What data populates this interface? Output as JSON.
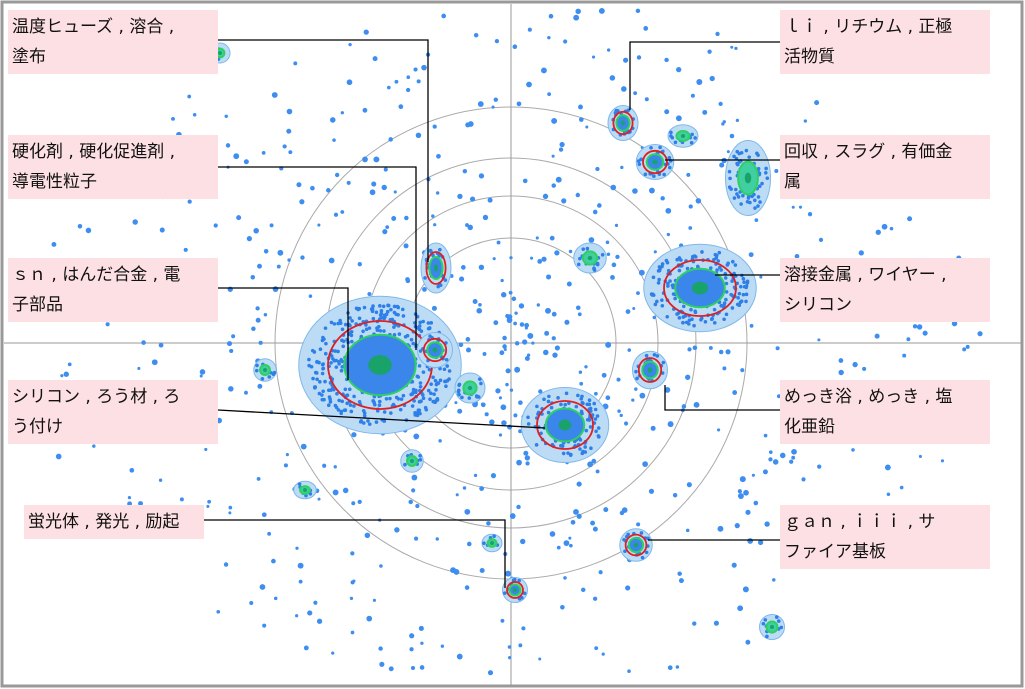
{
  "labels": [
    {
      "lines": [
        "温度ヒューズ , 溶合 ,",
        "塗布"
      ]
    },
    {
      "lines": [
        "硬化剤 , 硬化促進剤 ,",
        "導電性粒子"
      ]
    },
    {
      "lines": [
        "ｓｎ , はんだ合金 , 電",
        "子部品"
      ]
    },
    {
      "lines": [
        "シリコン , ろう材 , ろ",
        "う付け"
      ]
    },
    {
      "lines": [
        "蛍光体 , 発光 , 励起"
      ]
    },
    {
      "lines": [
        "ｌｉ , リチウム , 正極",
        "活物質"
      ]
    },
    {
      "lines": [
        "回収 , スラグ , 有価金",
        "属"
      ]
    },
    {
      "lines": [
        "溶接金属 , ワイヤー ,",
        "シリコン"
      ]
    },
    {
      "lines": [
        "めっき浴 , めっき , 塩",
        "化亜鉛"
      ]
    },
    {
      "lines": [
        "ｇａｎ , ｉｉｉ , サ",
        "ファイア基板"
      ]
    }
  ]
}
